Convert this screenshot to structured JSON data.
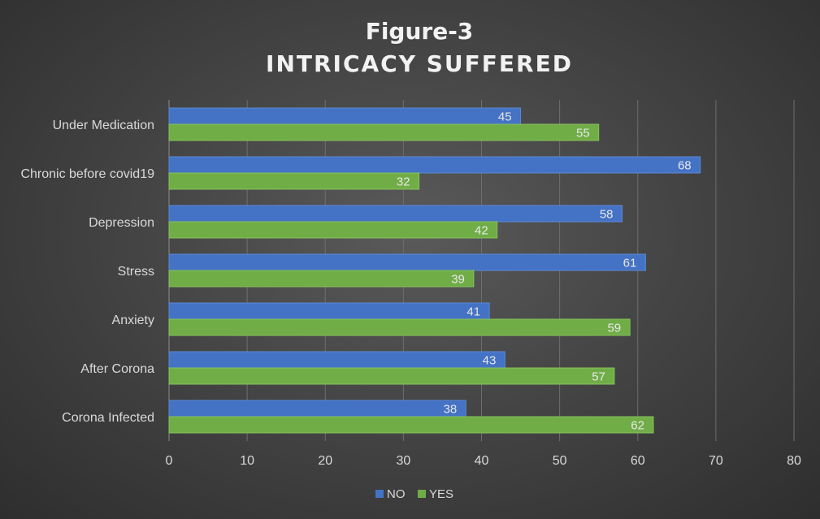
{
  "chart_data": {
    "type": "bar",
    "orientation": "horizontal",
    "title": "Figure-3",
    "subtitle": "INTRICACY SUFFERED",
    "xlabel": "",
    "ylabel": "",
    "categories": [
      "Under Medication",
      "Chronic before covid19",
      "Depression",
      "Stress",
      "Anxiety",
      "After Corona",
      "Corona Infected"
    ],
    "series": [
      {
        "name": "NO",
        "color": "#4472c4",
        "values": [
          45,
          68,
          58,
          61,
          41,
          43,
          38
        ]
      },
      {
        "name": "YES",
        "color": "#70ad47",
        "values": [
          55,
          32,
          42,
          39,
          59,
          57,
          62
        ]
      }
    ],
    "xlim": [
      0,
      80
    ],
    "xticks": [
      0,
      10,
      20,
      30,
      40,
      50,
      60,
      70,
      80
    ],
    "grid": "vertical",
    "data_labels": true,
    "legend": "bottom"
  }
}
